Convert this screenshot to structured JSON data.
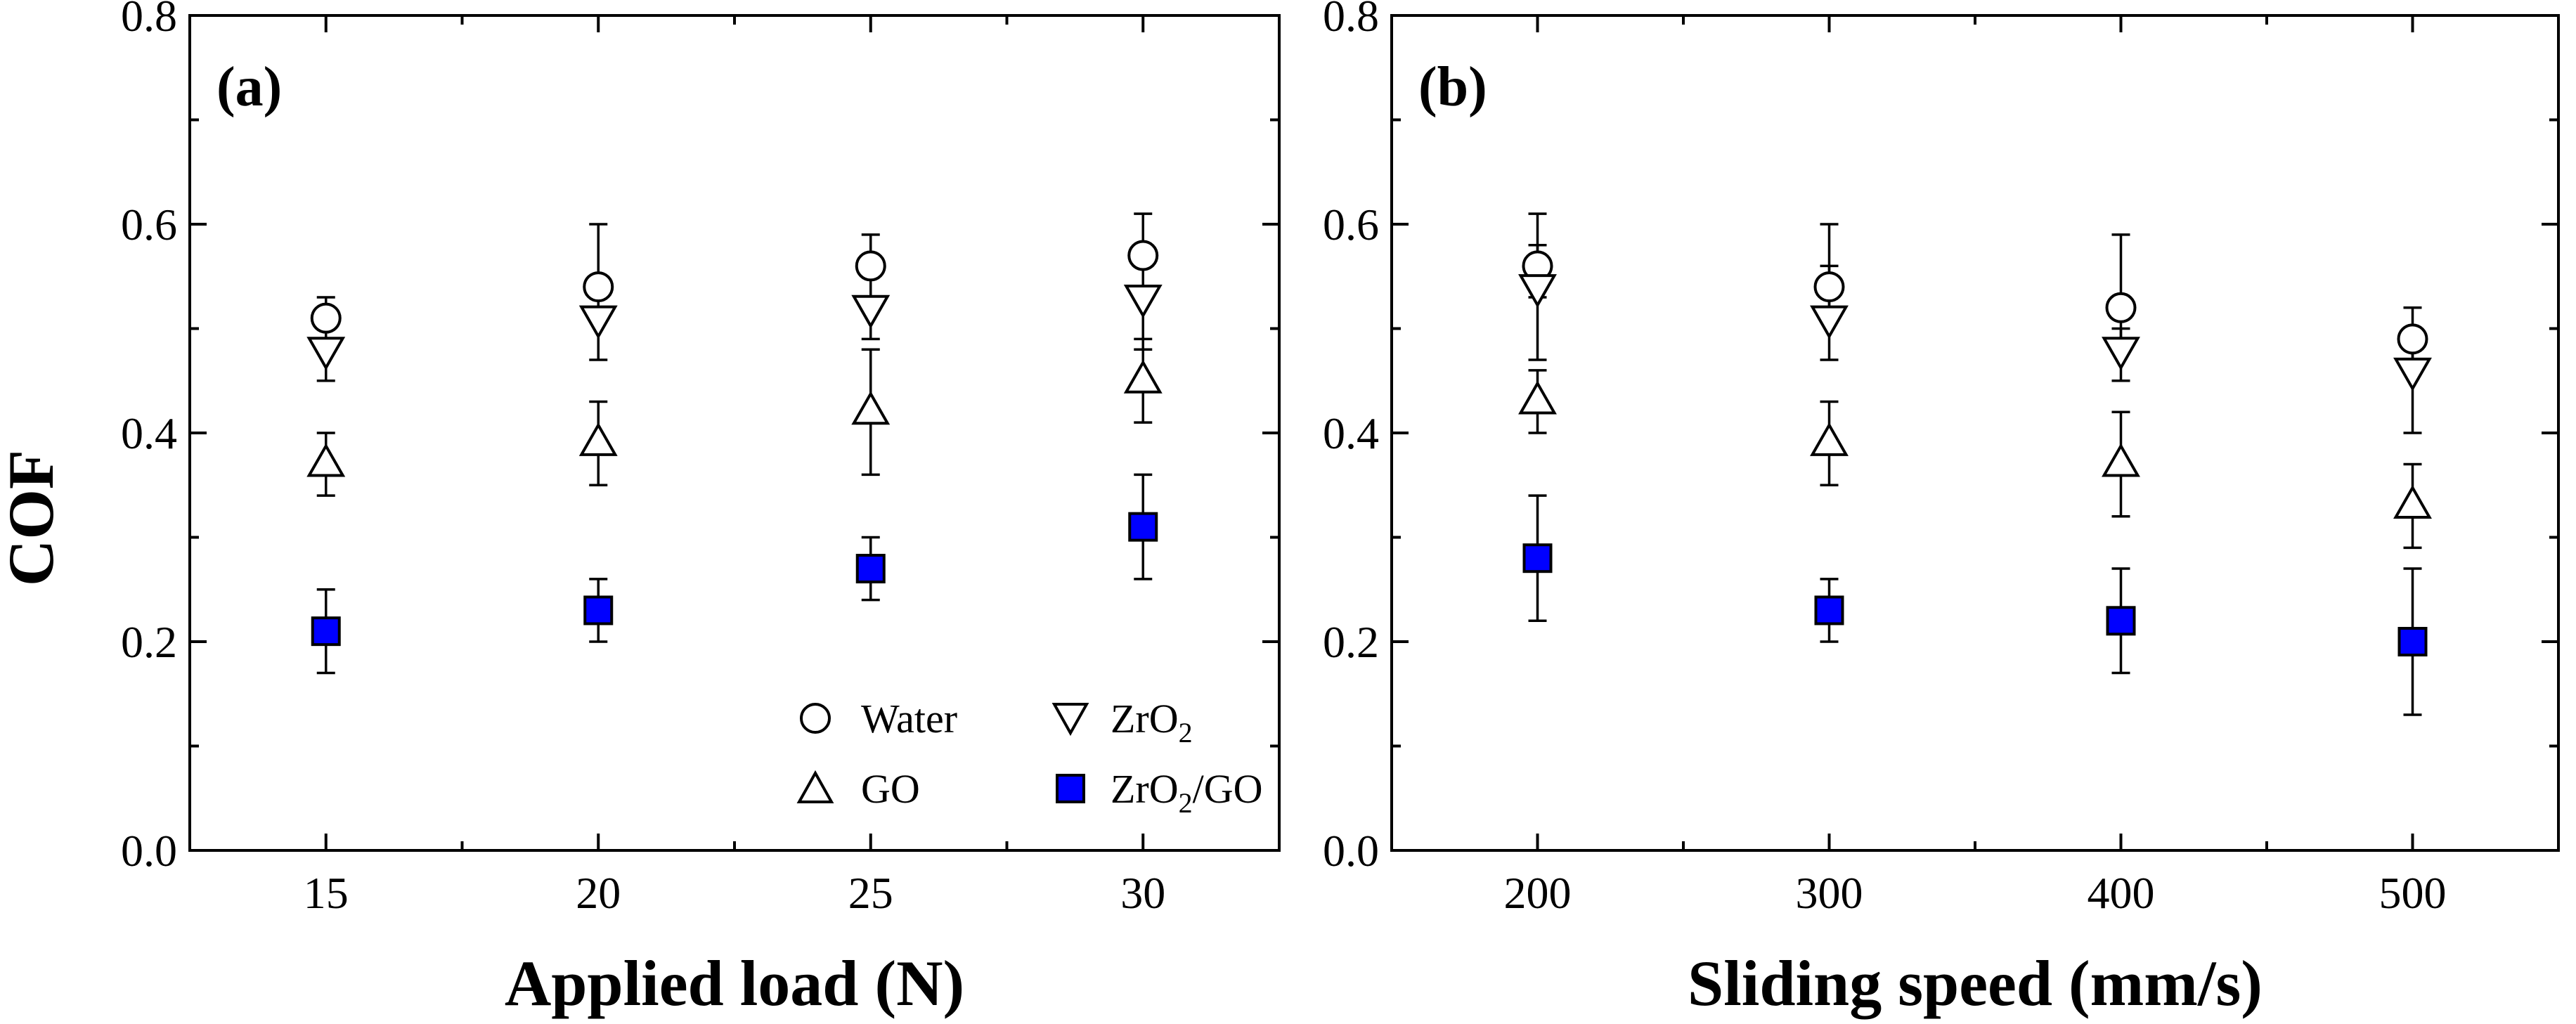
{
  "chart_data": [
    {
      "type": "scatter",
      "panel_label": "(a)",
      "xlabel": "Applied load (N)",
      "ylabel": "COF",
      "x": [
        15,
        20,
        25,
        30
      ],
      "x_ticks": [
        "15",
        "20",
        "25",
        "30"
      ],
      "xlim": [
        12.5,
        32.5
      ],
      "ylim": [
        0.0,
        0.8
      ],
      "y_ticks": [
        "0.0",
        "0.2",
        "0.4",
        "0.6",
        "0.8"
      ],
      "legend": {
        "position": "bottom-right"
      },
      "series": [
        {
          "name": "Water",
          "marker": "circle",
          "values": [
            0.51,
            0.54,
            0.56,
            0.57
          ],
          "err_upper": [
            0.53,
            0.55,
            0.59,
            0.61
          ],
          "err_lower": [
            0.49,
            0.52,
            0.53,
            0.53
          ]
        },
        {
          "name": "ZrO2",
          "marker": "triangle-down",
          "values": [
            0.48,
            0.51,
            0.52,
            0.53
          ],
          "err_upper": [
            0.52,
            0.6,
            0.55,
            0.57
          ],
          "err_lower": [
            0.45,
            0.47,
            0.49,
            0.48
          ]
        },
        {
          "name": "GO",
          "marker": "triangle-up",
          "values": [
            0.37,
            0.39,
            0.42,
            0.45
          ],
          "err_upper": [
            0.4,
            0.43,
            0.48,
            0.49
          ],
          "err_lower": [
            0.34,
            0.35,
            0.36,
            0.41
          ]
        },
        {
          "name": "ZrO2/GO",
          "marker": "square-filled",
          "values": [
            0.21,
            0.23,
            0.27,
            0.31
          ],
          "err_upper": [
            0.25,
            0.26,
            0.3,
            0.36
          ],
          "err_lower": [
            0.17,
            0.2,
            0.24,
            0.26
          ]
        }
      ]
    },
    {
      "type": "scatter",
      "panel_label": "(b)",
      "xlabel": "Sliding speed (mm/s)",
      "ylabel": "",
      "x": [
        200,
        300,
        400,
        500
      ],
      "x_ticks": [
        "200",
        "300",
        "400",
        "500"
      ],
      "xlim": [
        150,
        550
      ],
      "ylim": [
        0.0,
        0.8
      ],
      "y_ticks": [
        "0.0",
        "0.2",
        "0.4",
        "0.6",
        "0.8"
      ],
      "series": [
        {
          "name": "Water",
          "marker": "circle",
          "values": [
            0.56,
            0.54,
            0.52,
            0.49
          ],
          "err_upper": [
            0.58,
            0.56,
            0.59,
            0.52
          ],
          "err_lower": [
            0.53,
            0.52,
            0.48,
            0.46
          ]
        },
        {
          "name": "ZrO2",
          "marker": "triangle-down",
          "values": [
            0.54,
            0.51,
            0.48,
            0.46
          ],
          "err_upper": [
            0.61,
            0.6,
            0.5,
            0.5
          ],
          "err_lower": [
            0.47,
            0.47,
            0.45,
            0.4
          ]
        },
        {
          "name": "GO",
          "marker": "triangle-up",
          "values": [
            0.43,
            0.39,
            0.37,
            0.33
          ],
          "err_upper": [
            0.46,
            0.43,
            0.42,
            0.37
          ],
          "err_lower": [
            0.4,
            0.35,
            0.32,
            0.29
          ]
        },
        {
          "name": "ZrO2/GO",
          "marker": "square-filled",
          "values": [
            0.28,
            0.23,
            0.22,
            0.2
          ],
          "err_upper": [
            0.34,
            0.26,
            0.27,
            0.27
          ],
          "err_lower": [
            0.22,
            0.2,
            0.17,
            0.13
          ]
        }
      ]
    }
  ],
  "legend_labels": {
    "water": "Water",
    "zro2_main": "ZrO",
    "zro2_sub": "2",
    "go": "GO",
    "zrgo_main": "ZrO",
    "zrgo_sub": "2",
    "zrgo_tail": "/GO"
  },
  "colors": {
    "axis": "#000000",
    "filled_marker": "#0000ff",
    "open_marker": "#ffffff"
  }
}
